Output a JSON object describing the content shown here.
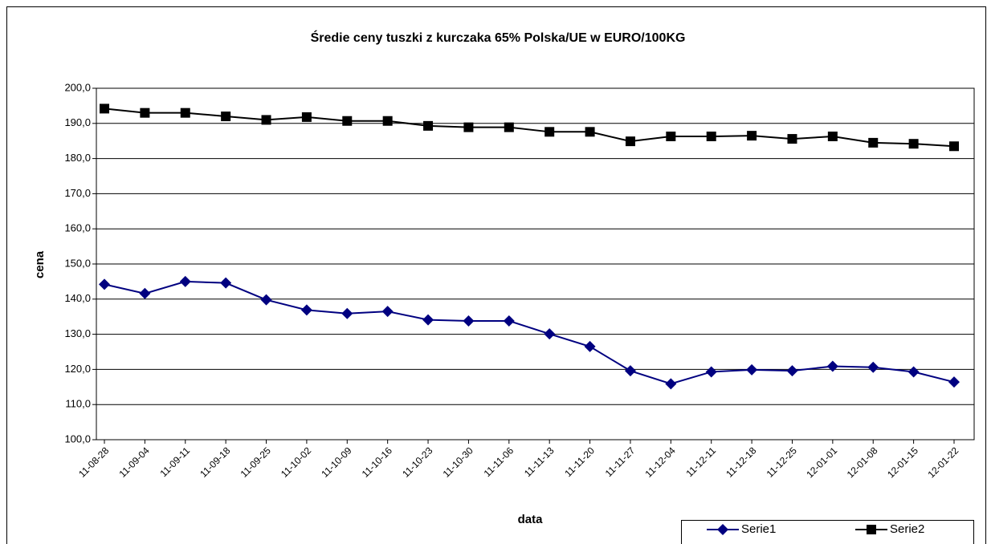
{
  "chart_data": {
    "type": "line",
    "title": "Średie ceny tuszki z kurczaka 65% Polska/UE w EURO/100KG",
    "x_label": "data",
    "y_label": "cena",
    "categories": [
      "11-08-28",
      "11-09-04",
      "11-09-11",
      "11-09-18",
      "11-09-25",
      "11-10-02",
      "11-10-09",
      "11-10-16",
      "11-10-23",
      "11-10-30",
      "11-11-06",
      "11-11-13",
      "11-11-20",
      "11-11-27",
      "11-12-04",
      "11-12-11",
      "11-12-18",
      "11-12-25",
      "12-01-01",
      "12-01-08",
      "12-01-15",
      "12-01-22"
    ],
    "series": [
      {
        "name": "Serie1",
        "color": "#000080",
        "marker": "diamond",
        "values": [
          144.2,
          141.6,
          145.0,
          144.6,
          139.8,
          136.9,
          135.9,
          136.5,
          134.1,
          133.8,
          133.8,
          130.1,
          126.5,
          119.6,
          115.9,
          119.3,
          119.9,
          119.6,
          120.9,
          120.6,
          119.3,
          116.4
        ]
      },
      {
        "name": "Serie2",
        "color": "#000000",
        "marker": "square",
        "values": [
          194.2,
          193.0,
          193.0,
          192.0,
          191.0,
          191.8,
          190.7,
          190.7,
          189.3,
          188.9,
          188.9,
          187.6,
          187.6,
          184.9,
          186.3,
          186.3,
          186.5,
          185.6,
          186.3,
          184.5,
          184.2,
          183.5
        ]
      }
    ],
    "ylim": [
      100,
      200
    ],
    "yticks": [
      {
        "value": 100,
        "label": "100,0"
      },
      {
        "value": 110,
        "label": "110,0"
      },
      {
        "value": 120,
        "label": "120,0"
      },
      {
        "value": 130,
        "label": "130,0"
      },
      {
        "value": 140,
        "label": "140,0"
      },
      {
        "value": 150,
        "label": "150,0"
      },
      {
        "value": 160,
        "label": "160,0"
      },
      {
        "value": 170,
        "label": "170,0"
      },
      {
        "value": 180,
        "label": "180,0"
      },
      {
        "value": 190,
        "label": "190,0"
      },
      {
        "value": 200,
        "label": "200,0"
      }
    ],
    "grid": true,
    "legend": "bottom-right"
  }
}
